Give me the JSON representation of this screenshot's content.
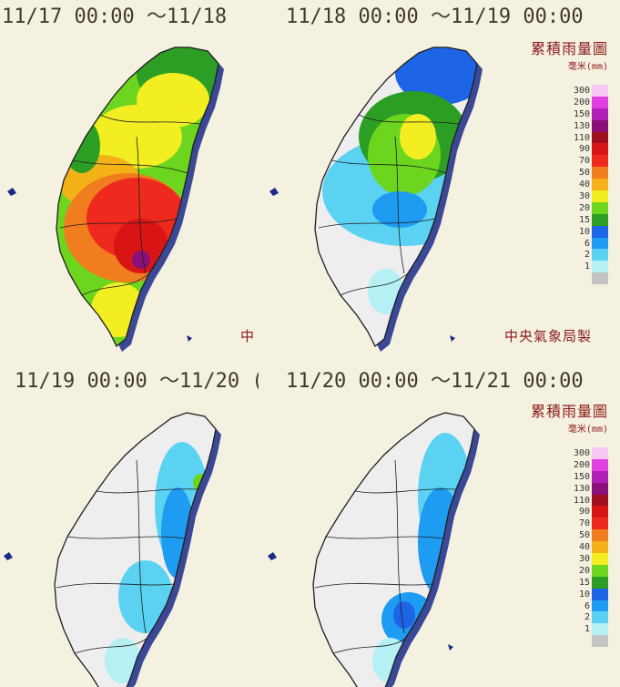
{
  "panels": [
    {
      "title": "11/17 00:00 ～11/18",
      "producer": "中"
    },
    {
      "title": "11/18 00:00 ～11/19 00:00",
      "producer": "中央氣象局製"
    },
    {
      "title": "11/19 00:00 ～11/20 (",
      "producer": ""
    },
    {
      "title": "11/20 00:00 ～11/21 00:00",
      "producer": ""
    }
  ],
  "legend": {
    "title": "累積雨量圖",
    "unit": "毫米(mm)",
    "levels": [
      {
        "label": "300",
        "color": "#f7c7f5"
      },
      {
        "label": "200",
        "color": "#e040e0"
      },
      {
        "label": "150",
        "color": "#b020b8"
      },
      {
        "label": "130",
        "color": "#8a0f78"
      },
      {
        "label": "110",
        "color": "#a00f1e"
      },
      {
        "label": "90",
        "color": "#d81414"
      },
      {
        "label": "70",
        "color": "#ee2a1e"
      },
      {
        "label": "50",
        "color": "#f07d1e"
      },
      {
        "label": "40",
        "color": "#f4b118"
      },
      {
        "label": "30",
        "color": "#f2ee22"
      },
      {
        "label": "20",
        "color": "#6cd61e"
      },
      {
        "label": "15",
        "color": "#2c9e24"
      },
      {
        "label": "10",
        "color": "#1e64e6"
      },
      {
        "label": "6",
        "color": "#1e9cf2"
      },
      {
        "label": "2",
        "color": "#5cd2f2"
      },
      {
        "label": "1",
        "color": "#b4f0f4"
      },
      {
        "label": "",
        "color": "#c4c4c4"
      }
    ]
  },
  "colors": {
    "background": "#f5f1e0",
    "no_rain": "#eeeeee",
    "border": "#1e1e1e",
    "shadow": "#1a2a88"
  }
}
